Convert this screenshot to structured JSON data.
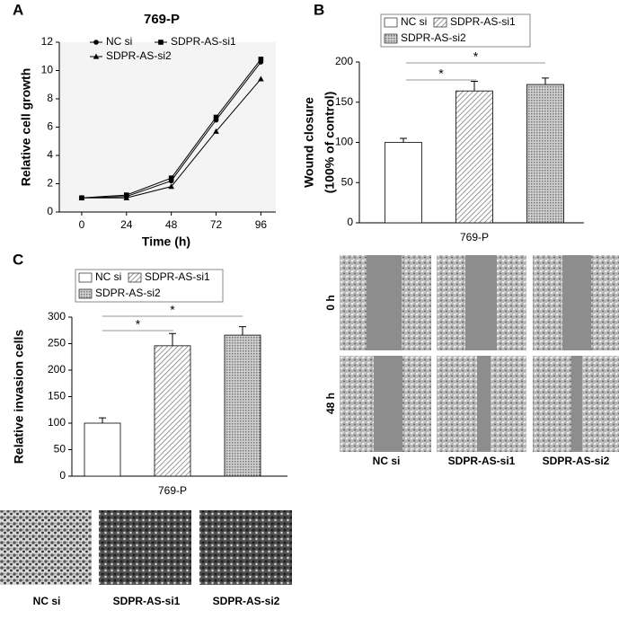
{
  "chart_data": [
    {
      "type": "line",
      "panel": "A",
      "title": "769-P",
      "xlabel": "Time (h)",
      "ylabel": "Relative cell growth",
      "x": [
        0,
        24,
        48,
        72,
        96
      ],
      "series": [
        {
          "name": "NC si",
          "color": "#000000",
          "marker": "circle",
          "values": [
            1.0,
            1.1,
            2.2,
            6.5,
            10.6
          ]
        },
        {
          "name": "SDPR-AS-si1",
          "color": "#000000",
          "marker": "square",
          "values": [
            1.0,
            1.2,
            2.4,
            6.7,
            10.8
          ]
        },
        {
          "name": "SDPR-AS-si2",
          "color": "#000000",
          "marker": "triangle",
          "values": [
            1.0,
            1.0,
            1.8,
            5.7,
            9.4
          ]
        }
      ],
      "xlim": [
        -12,
        104
      ],
      "xticks": [
        0,
        24,
        48,
        72,
        96
      ],
      "ylim": [
        0,
        12
      ],
      "yticks": [
        0,
        2,
        4,
        6,
        8,
        10,
        12
      ]
    },
    {
      "type": "bar",
      "panel": "B",
      "ylabel": [
        "Wound closure",
        "(100% of control)"
      ],
      "categories": [
        "769-P"
      ],
      "series": [
        {
          "name": "NC si",
          "color": "#ffffff",
          "values": [
            100
          ],
          "errors": [
            5
          ]
        },
        {
          "name": "SDPR-AS-si1",
          "color": "hatch",
          "values": [
            164
          ],
          "errors": [
            12
          ]
        },
        {
          "name": "SDPR-AS-si2",
          "color": "cross",
          "values": [
            172
          ],
          "errors": [
            8
          ]
        }
      ],
      "ylim": [
        0,
        200
      ],
      "yticks": [
        0,
        50,
        100,
        150,
        200
      ],
      "annotations": [
        "*",
        "*"
      ]
    },
    {
      "type": "bar",
      "panel": "C",
      "ylabel": "Relative invasion cells",
      "categories": [
        "769-P"
      ],
      "series": [
        {
          "name": "NC si",
          "color": "#ffffff",
          "values": [
            100
          ],
          "errors": [
            10
          ]
        },
        {
          "name": "SDPR-AS-si1",
          "color": "hatch",
          "values": [
            246
          ],
          "errors": [
            23
          ]
        },
        {
          "name": "SDPR-AS-si2",
          "color": "cross",
          "values": [
            266
          ],
          "errors": [
            16
          ]
        }
      ],
      "ylim": [
        0,
        300
      ],
      "yticks": [
        0,
        50,
        100,
        150,
        200,
        250,
        300
      ],
      "annotations": [
        "*",
        "*"
      ]
    }
  ],
  "micrographs": {
    "wound": {
      "rows": [
        "0 h",
        "48 h"
      ],
      "columns": [
        "NC si",
        "SDPR-AS-si1",
        "SDPR-AS-si2"
      ]
    },
    "invasion": {
      "columns": [
        "NC si",
        "SDPR-AS-si1",
        "SDPR-AS-si2"
      ]
    }
  }
}
